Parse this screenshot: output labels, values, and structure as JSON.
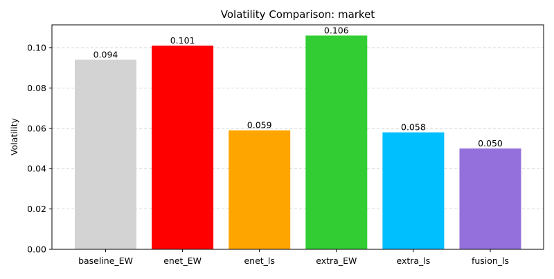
{
  "chart_data": {
    "type": "bar",
    "title": "Volatility Comparison: market",
    "xlabel": "",
    "ylabel": "Volatility",
    "categories": [
      "baseline_EW",
      "enet_EW",
      "enet_ls",
      "extra_EW",
      "extra_ls",
      "fusion_ls"
    ],
    "values": [
      0.094,
      0.101,
      0.059,
      0.106,
      0.058,
      0.05
    ],
    "value_labels": [
      "0.094",
      "0.101",
      "0.059",
      "0.106",
      "0.058",
      "0.050"
    ],
    "colors": [
      "#d3d3d3",
      "#ff0000",
      "#ffa500",
      "#32cd32",
      "#00bfff",
      "#9370db"
    ],
    "ylim": [
      0,
      0.1113
    ],
    "yticks": [
      0.0,
      0.02,
      0.04,
      0.06,
      0.08,
      0.1
    ],
    "ytick_labels": [
      "0.00",
      "0.02",
      "0.04",
      "0.06",
      "0.08",
      "0.10"
    ],
    "grid": "y-dashed",
    "legend": "none"
  }
}
